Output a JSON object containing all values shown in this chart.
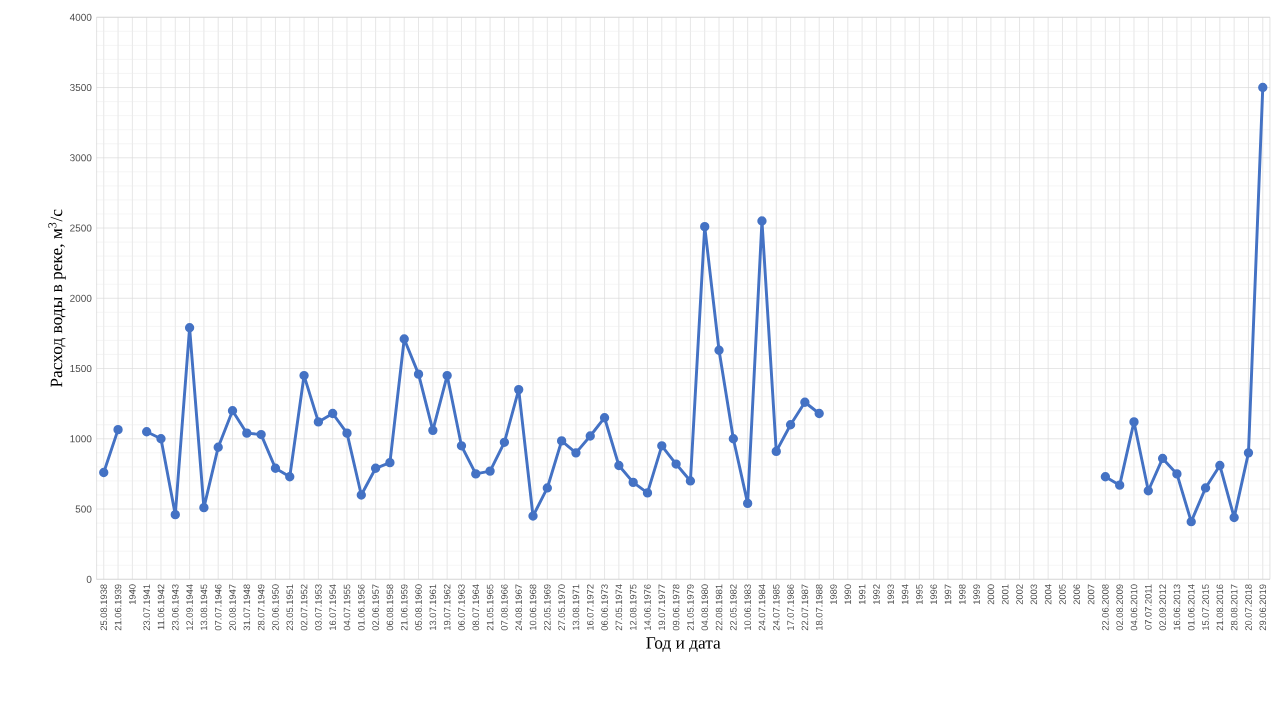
{
  "chart_data": {
    "type": "line",
    "xlabel": "Год и дата",
    "ylabel": "Расход воды в реке, м$^{3}$/с",
    "categories": [
      "25.08.1938",
      "21.06.1939",
      "1940",
      "23.07.1941",
      "11.06.1942",
      "23.06.1943",
      "12.09.1944",
      "13.08.1945",
      "07.07.1946",
      "20.08.1947",
      "31.07.1948",
      "28.07.1949",
      "20.06.1950",
      "23.05.1951",
      "02.07.1952",
      "03.07.1953",
      "16.07.1954",
      "04.07.1955",
      "01.06.1956",
      "02.06.1957",
      "06.08.1958",
      "21.06.1959",
      "05.08.1960",
      "13.07.1961",
      "19.07.1962",
      "06.07.1963",
      "08.07.1964",
      "21.05.1965",
      "07.08.1966",
      "24.08.1967",
      "10.06.1968",
      "22.05.1969",
      "27.05.1970",
      "13.08.1971",
      "16.07.1972",
      "06.06.1973",
      "27.05.1974",
      "12.08.1975",
      "14.06.1976",
      "19.07.1977",
      "09.06.1978",
      "21.05.1979",
      "04.08.1980",
      "22.08.1981",
      "22.05.1982",
      "10.06.1983",
      "24.07.1984",
      "24.07.1985",
      "17.07.1986",
      "22.07.1987",
      "18.07.1988",
      "1989",
      "1990",
      "1991",
      "1992",
      "1993",
      "1994",
      "1995",
      "1996",
      "1997",
      "1998",
      "1999",
      "2000",
      "2001",
      "2002",
      "2003",
      "2004",
      "2005",
      "2006",
      "2007",
      "22.06.2008",
      "02.08.2009",
      "04.06.2010",
      "07.07.2011",
      "02.09.2012",
      "16.06.2013",
      "01.06.2014",
      "15.07.2015",
      "21.08.2016",
      "28.08.2017",
      "20.07.2018",
      "29.06.2019"
    ],
    "series": [
      {
        "color": "#4472c4",
        "values": [
          760,
          1065,
          null,
          1050,
          1000,
          460,
          1790,
          510,
          940,
          1200,
          1040,
          1030,
          790,
          730,
          1450,
          1120,
          1180,
          1040,
          600,
          790,
          830,
          1710,
          1460,
          1060,
          1450,
          950,
          750,
          770,
          975,
          1350,
          450,
          650,
          985,
          900,
          1020,
          1150,
          810,
          690,
          615,
          950,
          820,
          700,
          2510,
          1630,
          1000,
          540,
          2550,
          910,
          1100,
          1260,
          1180,
          null,
          null,
          null,
          null,
          null,
          null,
          null,
          null,
          null,
          null,
          null,
          null,
          null,
          null,
          null,
          null,
          null,
          null,
          null,
          730,
          670,
          1120,
          630,
          860,
          750,
          410,
          650,
          810,
          440,
          900,
          3500
        ]
      }
    ],
    "ylim": [
      0,
      4000
    ],
    "yticks": [
      0,
      500,
      1000,
      1500,
      2000,
      2500,
      3000,
      3500,
      4000
    ],
    "grid": true,
    "marker": "circle",
    "line_style": "solid"
  }
}
